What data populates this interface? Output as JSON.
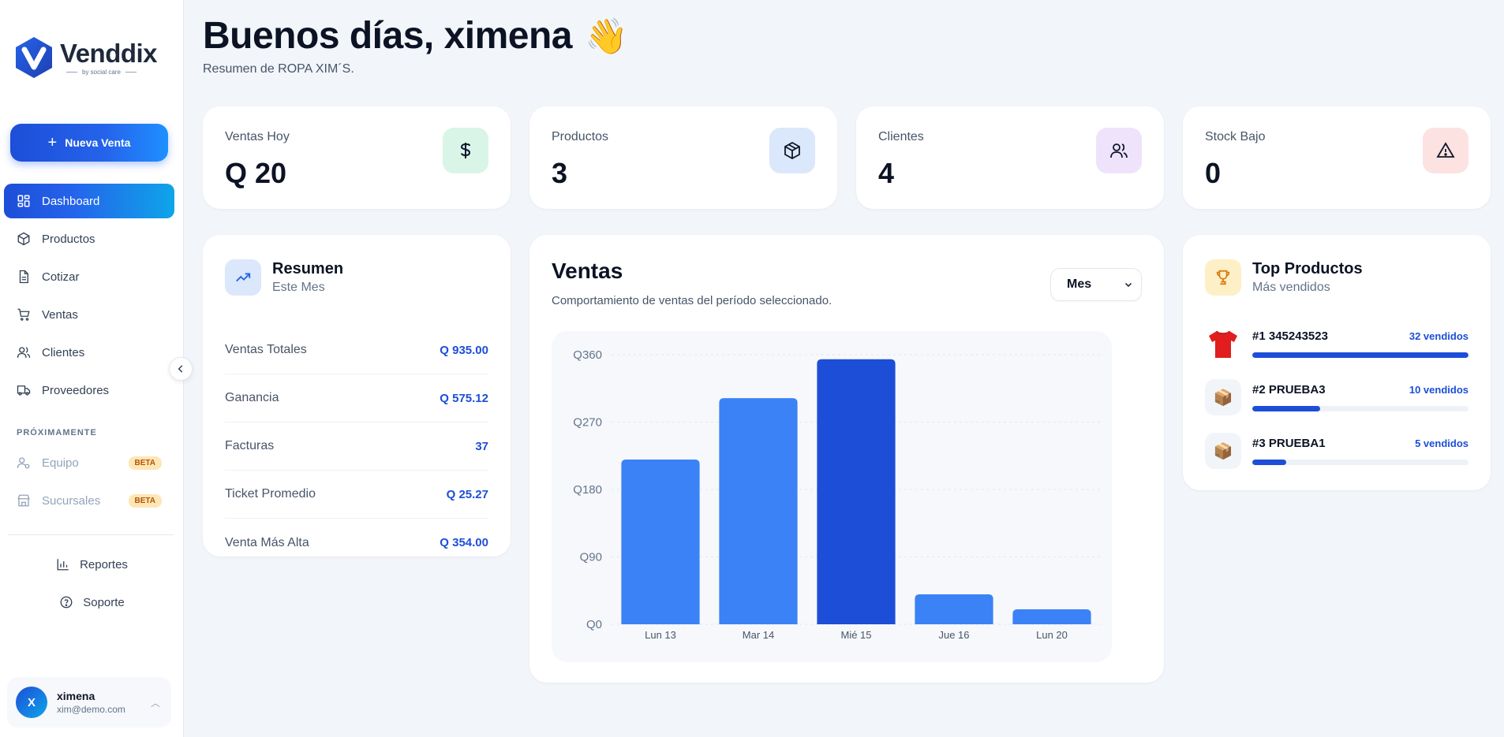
{
  "brand": {
    "name": "Venddix",
    "tagline": "by social care"
  },
  "sidebar": {
    "new_sale_label": "Nueva Venta",
    "items": [
      {
        "label": "Dashboard",
        "icon": "dashboard-icon",
        "active": true
      },
      {
        "label": "Productos",
        "icon": "box-icon"
      },
      {
        "label": "Cotizar",
        "icon": "document-icon"
      },
      {
        "label": "Ventas",
        "icon": "cart-icon"
      },
      {
        "label": "Clientes",
        "icon": "users-icon"
      },
      {
        "label": "Proveedores",
        "icon": "truck-icon"
      }
    ],
    "soon_section": "PRÓXIMAMENTE",
    "soon_items": [
      {
        "label": "Equipo",
        "badge": "BETA",
        "icon": "team-icon"
      },
      {
        "label": "Sucursales",
        "badge": "BETA",
        "icon": "store-icon"
      }
    ],
    "footer_links": [
      {
        "label": "Reportes",
        "icon": "bar-chart-icon"
      },
      {
        "label": "Soporte",
        "icon": "help-icon"
      }
    ],
    "user": {
      "initial": "X",
      "name": "ximena",
      "email": "xim@demo.com"
    }
  },
  "header": {
    "greeting": "Buenos días, ximena",
    "emoji": "👋",
    "subtitle": "Resumen de ROPA XIM´S."
  },
  "stats": [
    {
      "label": "Ventas Hoy",
      "value": "Q 20",
      "icon": "dollar-icon",
      "bg": "#d9f5e8",
      "color": "#0f172a"
    },
    {
      "label": "Productos",
      "value": "3",
      "icon": "cube-icon",
      "bg": "#dbe7fb",
      "color": "#0f172a"
    },
    {
      "label": "Clientes",
      "value": "4",
      "icon": "users-icon",
      "bg": "#efe3fb",
      "color": "#0f172a"
    },
    {
      "label": "Stock Bajo",
      "value": "0",
      "icon": "warning-icon",
      "bg": "#fde2e2",
      "color": "#0f172a"
    }
  ],
  "summary": {
    "title": "Resumen",
    "subtitle": "Este Mes",
    "rows": [
      {
        "label": "Ventas Totales",
        "value": "Q 935.00"
      },
      {
        "label": "Ganancia",
        "value": "Q 575.12"
      },
      {
        "label": "Facturas",
        "value": "37"
      },
      {
        "label": "Ticket Promedio",
        "value": "Q 25.27"
      },
      {
        "label": "Venta Más Alta",
        "value": "Q 354.00"
      }
    ]
  },
  "sales_chart": {
    "title": "Ventas",
    "subtitle": "Comportamiento de ventas del período seleccionado.",
    "period": "Mes"
  },
  "chart_data": {
    "type": "bar",
    "categories": [
      "Lun 13",
      "Mar 14",
      "Mié 15",
      "Jue 16",
      "Lun 20"
    ],
    "values": [
      220,
      302,
      354,
      40,
      20
    ],
    "highlight_index": 2,
    "yticks": [
      "Q0",
      "Q90",
      "Q180",
      "Q270",
      "Q360"
    ],
    "ytick_values": [
      0,
      90,
      180,
      270,
      360
    ],
    "ylim": [
      0,
      360
    ],
    "grid": true,
    "colors": {
      "bar": "#3b82f6",
      "highlight": "#1d4ed8"
    }
  },
  "top_products": {
    "title": "Top Productos",
    "subtitle": "Más vendidos",
    "items": [
      {
        "rank_name": "#1 345243523",
        "sold": "32 vendidos",
        "share": 1.0,
        "thumb": "shirt-icon"
      },
      {
        "rank_name": "#2 PRUEBA3",
        "sold": "10 vendidos",
        "share": 0.3125,
        "thumb": "package-icon"
      },
      {
        "rank_name": "#3 PRUEBA1",
        "sold": "5 vendidos",
        "share": 0.156,
        "thumb": "package-icon"
      }
    ]
  }
}
